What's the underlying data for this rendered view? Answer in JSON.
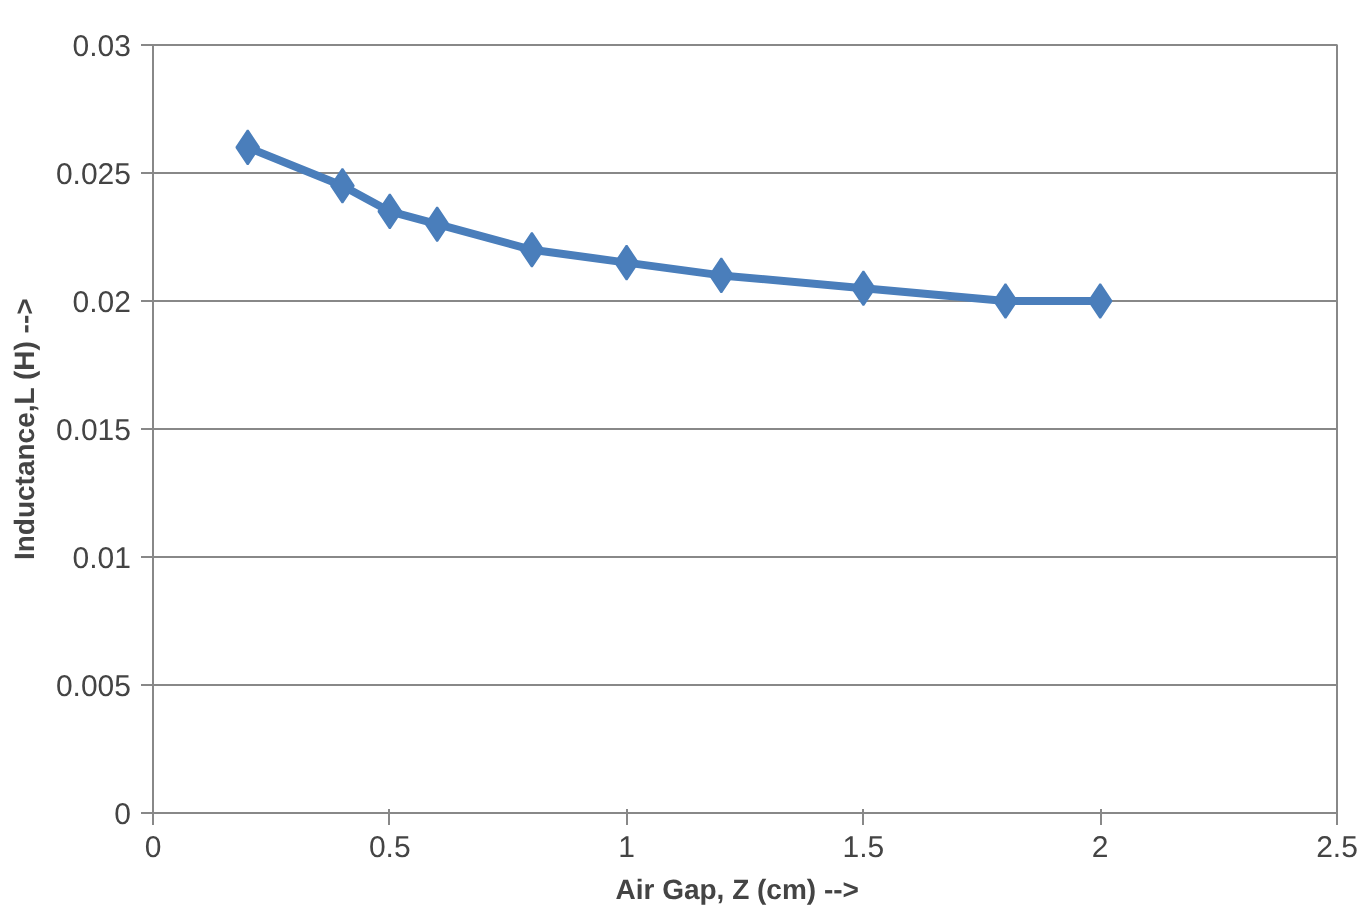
{
  "chart_data": {
    "type": "line",
    "xlabel": "Air Gap,  Z (cm)  -->",
    "ylabel": "Inductance,L (H) -->",
    "x": [
      0.2,
      0.4,
      0.5,
      0.6,
      0.8,
      1.0,
      1.2,
      1.5,
      1.8,
      2.0
    ],
    "series": [
      {
        "color": "#4a7ebb",
        "values": [
          0.026,
          0.0245,
          0.0235,
          0.023,
          0.022,
          0.0215,
          0.021,
          0.0205,
          0.02,
          0.02
        ]
      }
    ],
    "xlim": [
      0,
      2.5
    ],
    "ylim": [
      0,
      0.03
    ],
    "xticks": [
      0,
      0.5,
      1,
      1.5,
      2,
      2.5
    ],
    "yticks": [
      0,
      0.005,
      0.01,
      0.015,
      0.02,
      0.025,
      0.03
    ],
    "grid": "y",
    "marker": "diamond",
    "line_style": "solid"
  }
}
